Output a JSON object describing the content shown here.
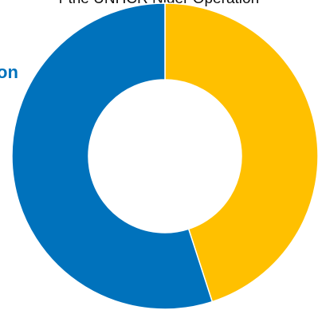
{
  "heading_partial": "r the UNHCR Niger Operation",
  "side_partial": "on",
  "colors": {
    "funded": "#ffc000",
    "gap": "#0072bc"
  },
  "chart_data": {
    "type": "pie",
    "title": "",
    "values": [
      45,
      55
    ],
    "categories": [
      "",
      ""
    ],
    "inner_radius_ratio": 0.5
  }
}
